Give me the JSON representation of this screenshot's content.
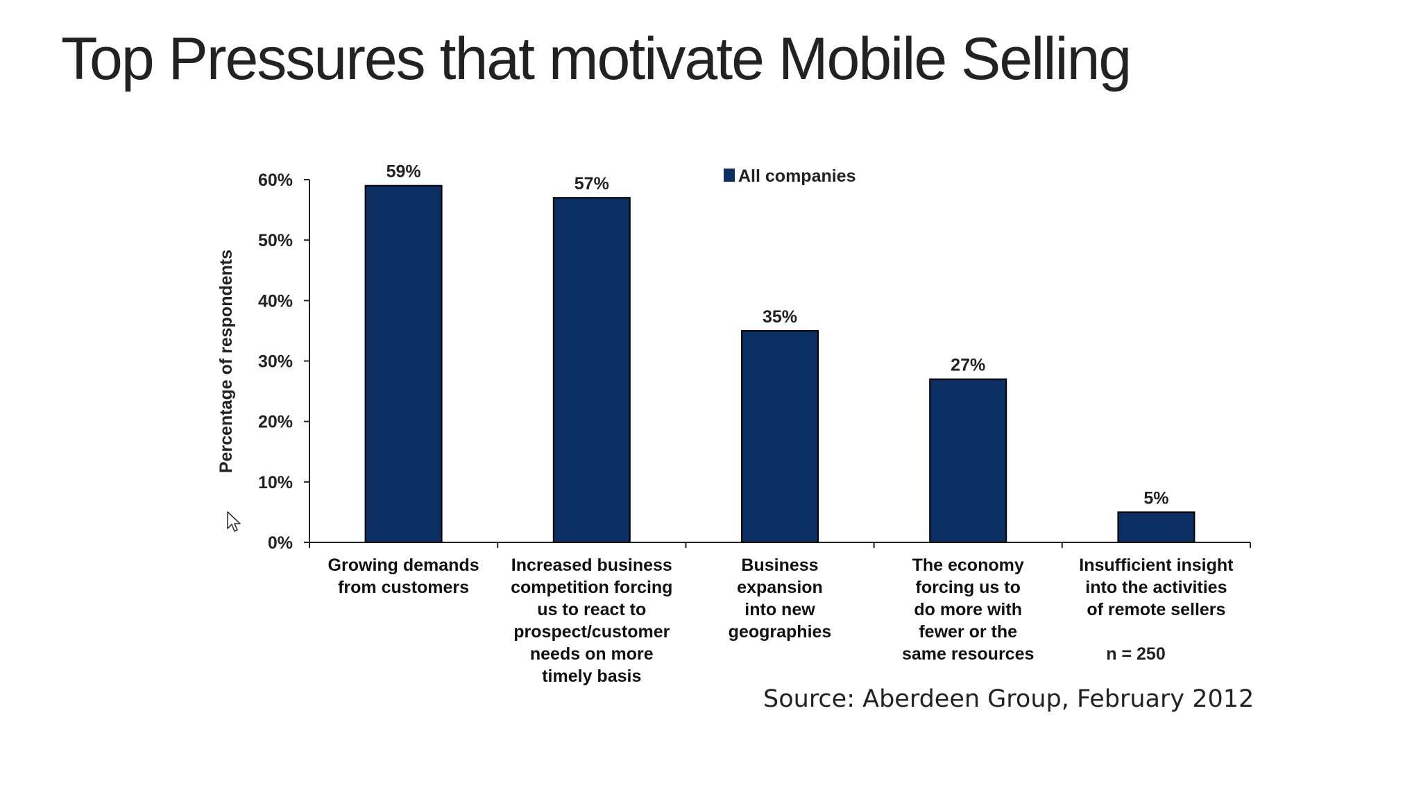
{
  "slide": {
    "title": "Top Pressures that motivate Mobile Selling",
    "source": "Source: Aberdeen Group, February 2012"
  },
  "chart_data": {
    "type": "bar",
    "categories": [
      [
        "Growing demands",
        "from customers"
      ],
      [
        "Increased business",
        "competition forcing",
        "us to react to",
        "prospect/customer",
        "needs on more",
        "timely basis"
      ],
      [
        "Business",
        "expansion",
        "into new",
        "geographies"
      ],
      [
        "The economy",
        "forcing us to",
        "do more with",
        "fewer or the",
        "same resources"
      ],
      [
        "Insufficient insight",
        "into the activities",
        "of remote sellers"
      ]
    ],
    "series": [
      {
        "name": "All companies",
        "values": [
          59,
          57,
          35,
          27,
          5
        ]
      }
    ],
    "value_labels": [
      "59%",
      "57%",
      "35%",
      "27%",
      "5%"
    ],
    "ylabel": "Percentage of respondents",
    "yticks": [
      "0%",
      "10%",
      "20%",
      "30%",
      "40%",
      "50%",
      "60%"
    ],
    "ylim": [
      0,
      60
    ],
    "note": "n = 250",
    "legend_position": "top",
    "bar_color": "#0b2f63",
    "grid": false
  }
}
